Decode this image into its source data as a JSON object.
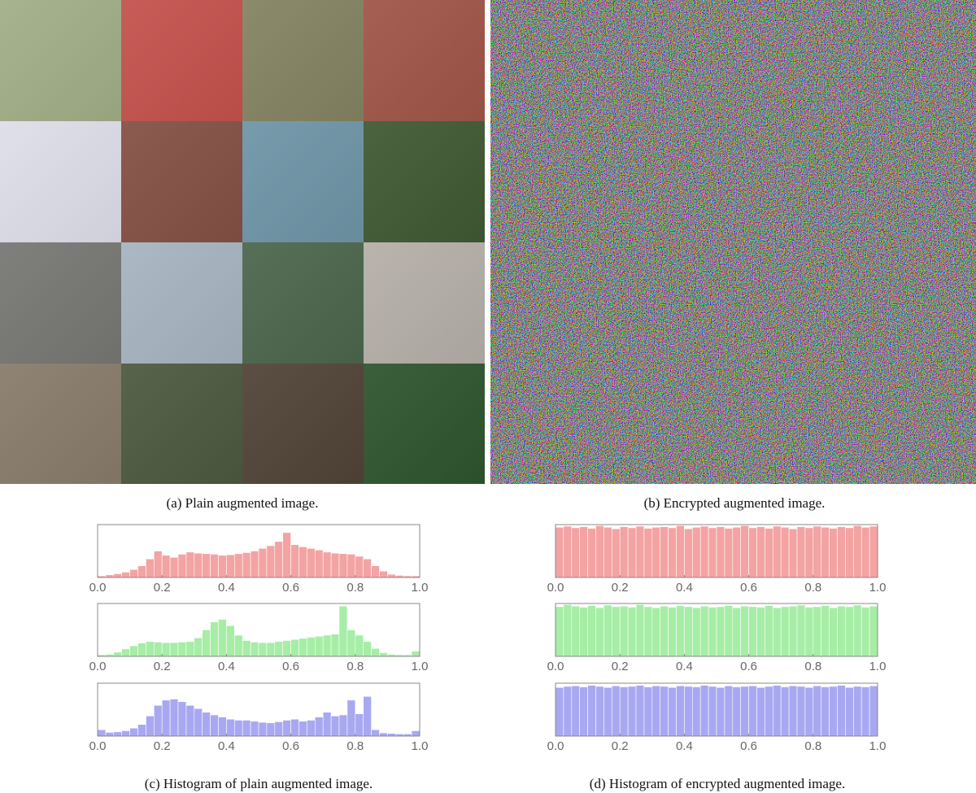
{
  "captions": [
    "(a) Plain augmented image.",
    "(b) Encrypted augmented image.",
    "(c) Histogram of plain augmented image.",
    "(d) Histogram of encrypted augmented image."
  ],
  "chart_data": [
    {
      "type": "histogram",
      "color": "#f4a3a3",
      "xlim": [
        0,
        1
      ],
      "ylim": [
        0,
        100
      ],
      "xticks": [
        {
          "value": 0,
          "label": "0.0"
        },
        0.2,
        0.4,
        0.6,
        0.8,
        {
          "value": 1,
          "label": "1.0"
        }
      ],
      "bins": [
        0,
        0.025,
        0.05,
        0.075,
        0.1,
        0.125,
        0.15,
        0.175,
        0.2,
        0.225,
        0.25,
        0.275,
        0.3,
        0.325,
        0.35,
        0.375,
        0.4,
        0.425,
        0.45,
        0.475,
        0.5,
        0.525,
        0.55,
        0.575,
        0.6,
        0.625,
        0.65,
        0.675,
        0.7,
        0.725,
        0.75,
        0.775,
        0.8,
        0.825,
        0.85,
        0.875,
        0.9,
        0.925,
        0.95,
        0.975,
        1
      ],
      "values": [
        3,
        5,
        7,
        10,
        15,
        22,
        35,
        50,
        42,
        38,
        44,
        48,
        46,
        45,
        44,
        42,
        43,
        45,
        47,
        50,
        55,
        60,
        68,
        85,
        62,
        58,
        55,
        52,
        48,
        46,
        45,
        44,
        40,
        35,
        22,
        12,
        6,
        4,
        3,
        3
      ]
    },
    {
      "type": "histogram",
      "color": "#a6eda6",
      "xlim": [
        0,
        1
      ],
      "ylim": [
        0,
        100
      ],
      "xticks": [
        {
          "value": 0,
          "label": "0.0"
        },
        0.2,
        0.4,
        0.6,
        0.8,
        {
          "value": 1,
          "label": "1.0"
        }
      ],
      "bins": [
        0,
        0.025,
        0.05,
        0.075,
        0.1,
        0.125,
        0.15,
        0.175,
        0.2,
        0.225,
        0.25,
        0.275,
        0.3,
        0.325,
        0.35,
        0.375,
        0.4,
        0.425,
        0.45,
        0.475,
        0.5,
        0.525,
        0.55,
        0.575,
        0.6,
        0.625,
        0.65,
        0.675,
        0.7,
        0.725,
        0.75,
        0.775,
        0.8,
        0.825,
        0.85,
        0.875,
        0.9,
        0.925,
        0.95,
        0.975,
        1
      ],
      "values": [
        3,
        4,
        8,
        14,
        20,
        25,
        28,
        27,
        26,
        26,
        27,
        28,
        35,
        50,
        65,
        70,
        58,
        40,
        30,
        27,
        26,
        26,
        28,
        30,
        32,
        34,
        36,
        38,
        40,
        42,
        95,
        50,
        40,
        28,
        15,
        7,
        4,
        3,
        3,
        10
      ]
    },
    {
      "type": "histogram",
      "color": "#a8a8f2",
      "xlim": [
        0,
        1
      ],
      "ylim": [
        0,
        100
      ],
      "xticks": [
        {
          "value": 0,
          "label": "0.0"
        },
        0.2,
        0.4,
        0.6,
        0.8,
        {
          "value": 1,
          "label": "1.0"
        }
      ],
      "bins": [
        0,
        0.025,
        0.05,
        0.075,
        0.1,
        0.125,
        0.15,
        0.175,
        0.2,
        0.225,
        0.25,
        0.275,
        0.3,
        0.325,
        0.35,
        0.375,
        0.4,
        0.425,
        0.45,
        0.475,
        0.5,
        0.525,
        0.55,
        0.575,
        0.6,
        0.625,
        0.65,
        0.675,
        0.7,
        0.725,
        0.75,
        0.775,
        0.8,
        0.825,
        0.85,
        0.875,
        0.9,
        0.925,
        0.95,
        0.975,
        1
      ],
      "values": [
        12,
        7,
        8,
        10,
        15,
        22,
        38,
        58,
        68,
        70,
        65,
        58,
        52,
        45,
        40,
        36,
        32,
        30,
        30,
        28,
        26,
        25,
        27,
        30,
        32,
        28,
        30,
        36,
        45,
        38,
        40,
        68,
        42,
        75,
        12,
        6,
        5,
        4,
        4,
        10
      ]
    },
    {
      "type": "histogram",
      "color": "#f4a3a3",
      "xlim": [
        0,
        1
      ],
      "ylim": [
        0,
        100
      ],
      "xticks": [
        {
          "value": 0,
          "label": "0.0"
        },
        0.2,
        0.4,
        0.6,
        0.8,
        {
          "value": 1,
          "label": "1.0"
        }
      ],
      "bins": [
        0,
        0.025,
        0.05,
        0.075,
        0.1,
        0.125,
        0.15,
        0.175,
        0.2,
        0.225,
        0.25,
        0.275,
        0.3,
        0.325,
        0.35,
        0.375,
        0.4,
        0.425,
        0.45,
        0.475,
        0.5,
        0.525,
        0.55,
        0.575,
        0.6,
        0.625,
        0.65,
        0.675,
        0.7,
        0.725,
        0.75,
        0.775,
        0.8,
        0.825,
        0.85,
        0.875,
        0.9,
        0.925,
        0.95,
        0.975,
        1
      ],
      "values": [
        95,
        97,
        94,
        96,
        93,
        98,
        95,
        92,
        96,
        94,
        97,
        93,
        95,
        96,
        94,
        98,
        92,
        95,
        97,
        94,
        96,
        93,
        95,
        98,
        94,
        96,
        93,
        97,
        95,
        92,
        96,
        94,
        97,
        95,
        93,
        96,
        94,
        98,
        95,
        97
      ]
    },
    {
      "type": "histogram",
      "color": "#a6eda6",
      "xlim": [
        0,
        1
      ],
      "ylim": [
        0,
        100
      ],
      "xticks": [
        {
          "value": 0,
          "label": "0.0"
        },
        0.2,
        0.4,
        0.6,
        0.8,
        {
          "value": 1,
          "label": "1.0"
        }
      ],
      "bins": [
        0,
        0.025,
        0.05,
        0.075,
        0.1,
        0.125,
        0.15,
        0.175,
        0.2,
        0.225,
        0.25,
        0.275,
        0.3,
        0.325,
        0.35,
        0.375,
        0.4,
        0.425,
        0.45,
        0.475,
        0.5,
        0.525,
        0.55,
        0.575,
        0.6,
        0.625,
        0.65,
        0.675,
        0.7,
        0.725,
        0.75,
        0.775,
        0.8,
        0.825,
        0.85,
        0.875,
        0.9,
        0.925,
        0.95,
        0.975,
        1
      ],
      "values": [
        94,
        98,
        95,
        93,
        96,
        92,
        97,
        94,
        95,
        93,
        98,
        94,
        92,
        95,
        93,
        96,
        94,
        92,
        95,
        93,
        94,
        96,
        92,
        95,
        94,
        93,
        96,
        92,
        94,
        95,
        97,
        93,
        94,
        96,
        92,
        95,
        94,
        97,
        93,
        95
      ]
    },
    {
      "type": "histogram",
      "color": "#a8a8f2",
      "xlim": [
        0,
        1
      ],
      "ylim": [
        0,
        100
      ],
      "xticks": [
        {
          "value": 0,
          "label": "0.0"
        },
        0.2,
        0.4,
        0.6,
        0.8,
        {
          "value": 1,
          "label": "1.0"
        }
      ],
      "bins": [
        0,
        0.025,
        0.05,
        0.075,
        0.1,
        0.125,
        0.15,
        0.175,
        0.2,
        0.225,
        0.25,
        0.275,
        0.3,
        0.325,
        0.35,
        0.375,
        0.4,
        0.425,
        0.45,
        0.475,
        0.5,
        0.525,
        0.55,
        0.575,
        0.6,
        0.625,
        0.65,
        0.675,
        0.7,
        0.725,
        0.75,
        0.775,
        0.8,
        0.825,
        0.85,
        0.875,
        0.9,
        0.925,
        0.95,
        0.975,
        1
      ],
      "values": [
        92,
        94,
        95,
        93,
        96,
        94,
        92,
        95,
        93,
        94,
        96,
        93,
        95,
        94,
        92,
        95,
        94,
        93,
        96,
        94,
        92,
        95,
        93,
        94,
        95,
        92,
        94,
        96,
        93,
        95,
        94,
        92,
        95,
        93,
        94,
        96,
        92,
        94,
        93,
        95
      ]
    }
  ]
}
